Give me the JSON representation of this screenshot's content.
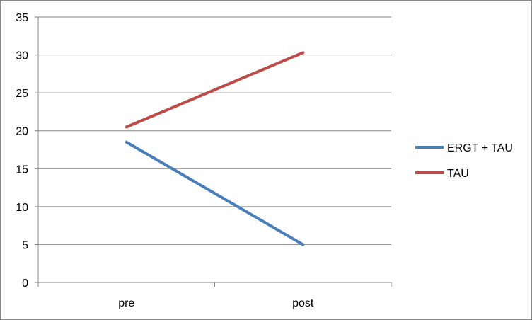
{
  "chart_data": {
    "type": "line",
    "categories": [
      "pre",
      "post"
    ],
    "series": [
      {
        "name": "ERGT + TAU",
        "values": [
          18.5,
          5
        ],
        "color": "#4a7ebb"
      },
      {
        "name": "TAU",
        "values": [
          20.5,
          30.3
        ],
        "color": "#be4b48"
      }
    ],
    "title": "",
    "xlabel": "",
    "ylabel": "",
    "ylim": [
      0,
      35
    ],
    "yticks": [
      0,
      5,
      10,
      15,
      20,
      25,
      30,
      35
    ],
    "grid": true,
    "gridline_color": "#868686",
    "legend_position": "right"
  }
}
